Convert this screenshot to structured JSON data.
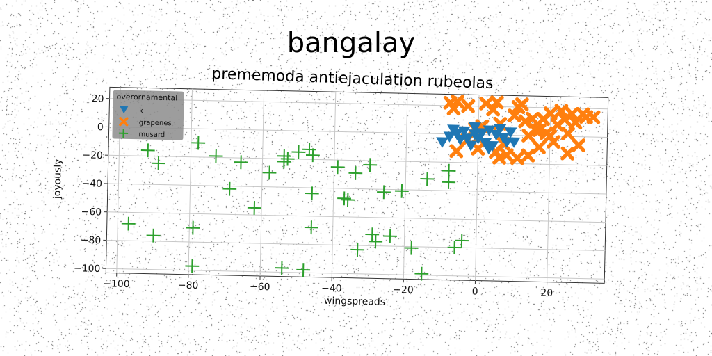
{
  "chart_data": {
    "type": "scatter",
    "title": "bangalay",
    "subtitle": "prememoda antiejaculation rubeolas",
    "xlabel": "wingspreads",
    "ylabel": "joyously",
    "xlim": [
      -103,
      36
    ],
    "ylim": [
      -103,
      28
    ],
    "xticks": [
      -100,
      -80,
      -60,
      -40,
      -20,
      0,
      20
    ],
    "yticks": [
      20,
      0,
      -20,
      -40,
      -60,
      -80,
      -100
    ],
    "grid": true,
    "legend": {
      "title": "overornamental",
      "placement": "top-left"
    },
    "series": [
      {
        "name": "k",
        "marker": "triangle-down",
        "color": "#1f77b4",
        "points": [
          [
            -10,
            -6
          ],
          [
            -8,
            -2
          ],
          [
            -6,
            0
          ],
          [
            -5,
            -4
          ],
          [
            -4,
            2
          ],
          [
            -3,
            -3
          ],
          [
            -2,
            -8
          ],
          [
            -1,
            0
          ],
          [
            0,
            -3
          ],
          [
            1,
            1
          ],
          [
            2,
            -6
          ],
          [
            3,
            3
          ],
          [
            4,
            -8
          ],
          [
            5,
            0
          ],
          [
            6,
            4
          ],
          [
            7,
            -2
          ],
          [
            8,
            -5
          ],
          [
            9,
            2
          ],
          [
            -7,
            3
          ],
          [
            -1,
            5
          ],
          [
            3,
            -10
          ],
          [
            10,
            -5
          ]
        ]
      },
      {
        "name": "grapenes",
        "marker": "x",
        "color": "#ff7f0e",
        "points": [
          [
            -8,
            22
          ],
          [
            -6,
            23
          ],
          [
            -7,
            18
          ],
          [
            -3,
            20
          ],
          [
            -1,
            4
          ],
          [
            0,
            -2
          ],
          [
            1,
            6
          ],
          [
            2,
            22
          ],
          [
            4,
            18
          ],
          [
            5,
            23
          ],
          [
            6,
            8
          ],
          [
            7,
            -6
          ],
          [
            -6,
            -12
          ],
          [
            -3,
            -4
          ],
          [
            0,
            -10
          ],
          [
            5,
            -12
          ],
          [
            6,
            -16
          ],
          [
            8,
            -14
          ],
          [
            11,
            20
          ],
          [
            12,
            22
          ],
          [
            13,
            10
          ],
          [
            14,
            0
          ],
          [
            15,
            12
          ],
          [
            16,
            4
          ],
          [
            17,
            -8
          ],
          [
            18,
            12
          ],
          [
            19,
            2
          ],
          [
            20,
            16
          ],
          [
            21,
            -4
          ],
          [
            22,
            8
          ],
          [
            23,
            18
          ],
          [
            24,
            12
          ],
          [
            25,
            2
          ],
          [
            26,
            16
          ],
          [
            27,
            10
          ],
          [
            28,
            -6
          ],
          [
            29,
            16
          ],
          [
            30,
            14
          ],
          [
            32,
            14
          ],
          [
            25,
            -12
          ],
          [
            14,
            -14
          ],
          [
            11,
            -16
          ],
          [
            10,
            14
          ],
          [
            20,
            0
          ],
          [
            17,
            4
          ]
        ]
      },
      {
        "name": "musard",
        "marker": "plus",
        "color": "#2ca02c",
        "points": [
          [
            -92,
            -16
          ],
          [
            -89,
            -25
          ],
          [
            -97,
            -68
          ],
          [
            -90,
            -76
          ],
          [
            -78,
            -10
          ],
          [
            -79,
            -70
          ],
          [
            -79,
            -97
          ],
          [
            -73,
            -19
          ],
          [
            -69,
            -42
          ],
          [
            -66,
            -23
          ],
          [
            -62,
            -55
          ],
          [
            -58,
            -30
          ],
          [
            -54,
            -18
          ],
          [
            -54,
            -22
          ],
          [
            -53,
            -20
          ],
          [
            -54,
            -97
          ],
          [
            -50,
            -15
          ],
          [
            -48,
            -98
          ],
          [
            -47,
            -13
          ],
          [
            -46,
            -17
          ],
          [
            -46,
            -44
          ],
          [
            -46,
            -68
          ],
          [
            -39,
            -25
          ],
          [
            -37,
            -47
          ],
          [
            -36,
            -48
          ],
          [
            -34,
            -29
          ],
          [
            -33,
            -83
          ],
          [
            -30,
            -23
          ],
          [
            -29,
            -72
          ],
          [
            -28,
            -77
          ],
          [
            -26,
            -42
          ],
          [
            -24,
            -73
          ],
          [
            -21,
            -41
          ],
          [
            -18,
            -81
          ],
          [
            -15,
            -99
          ],
          [
            -14,
            -32
          ],
          [
            -8,
            -34
          ],
          [
            -8,
            -26
          ],
          [
            -6,
            -80
          ],
          [
            -4,
            -75
          ]
        ]
      }
    ]
  }
}
